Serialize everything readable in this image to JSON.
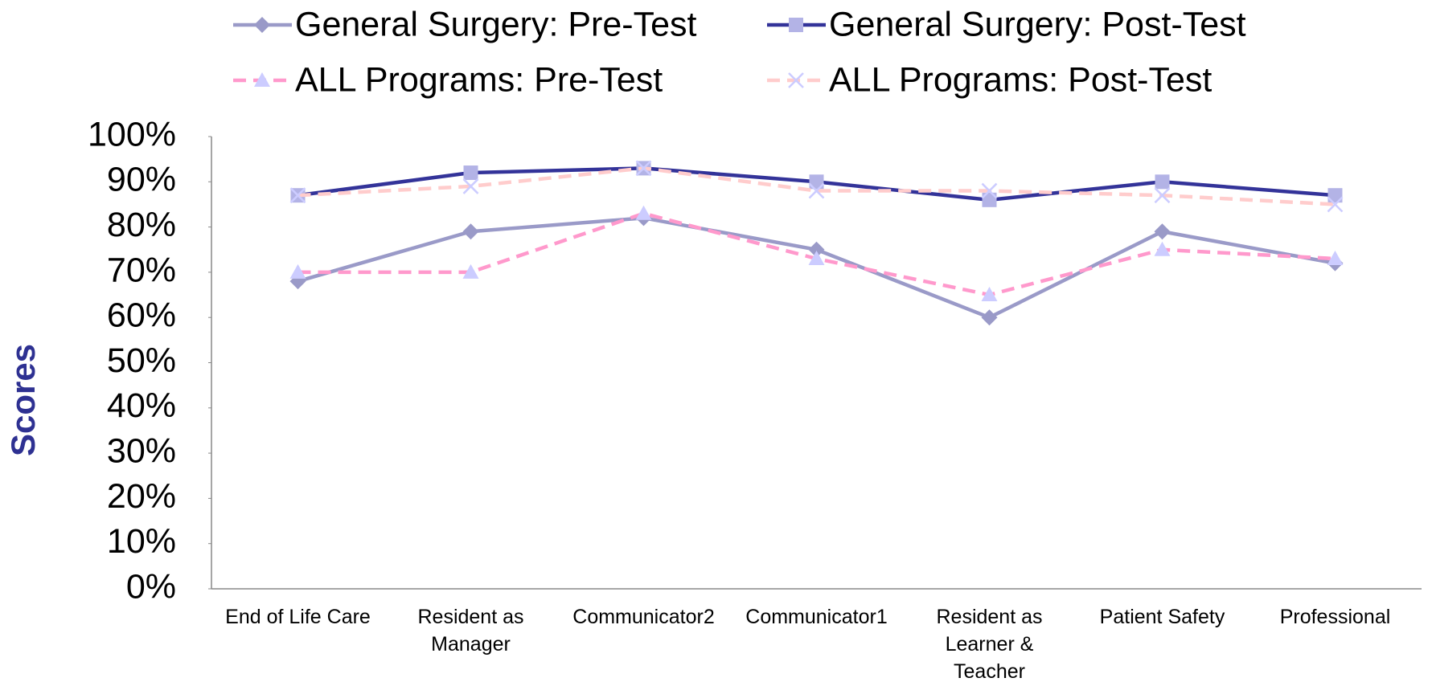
{
  "chart_data": {
    "type": "line",
    "y_label": "Scores",
    "categories": [
      "End of Life Care",
      "Resident as Manager",
      "Communicator2",
      "Communicator1",
      "Resident as Learner & Teacher",
      "Patient Safety",
      "Professional"
    ],
    "series": [
      {
        "name": "General Surgery: Pre-Test",
        "color": "#9a9ac8",
        "marker": "diamond",
        "marker_color": "#9a9ac8",
        "dashed": false,
        "values": [
          68,
          79,
          82,
          75,
          60,
          79,
          72
        ]
      },
      {
        "name": "General Surgery: Post-Test",
        "color": "#333399",
        "marker": "square",
        "marker_color": "#b3b3e6",
        "dashed": false,
        "values": [
          87,
          92,
          93,
          90,
          86,
          90,
          87
        ]
      },
      {
        "name": "ALL Programs: Pre-Test",
        "color": "#ff99cc",
        "marker": "triangle",
        "marker_color": "#ccccff",
        "dashed": true,
        "values": [
          70,
          70,
          83,
          73,
          65,
          75,
          73
        ]
      },
      {
        "name": "ALL Programs: Post-Test",
        "color": "#ffcccc",
        "marker": "x",
        "marker_color": "#ccccff",
        "dashed": true,
        "values": [
          87,
          89,
          93,
          88,
          88,
          87,
          85
        ]
      }
    ],
    "ylim": [
      0,
      100
    ],
    "yticks": [
      {
        "value": 0,
        "label": "0%"
      },
      {
        "value": 10,
        "label": "10%"
      },
      {
        "value": 20,
        "label": "20%"
      },
      {
        "value": 30,
        "label": "30%"
      },
      {
        "value": 40,
        "label": "40%"
      },
      {
        "value": 50,
        "label": "50%"
      },
      {
        "value": 60,
        "label": "60%"
      },
      {
        "value": 70,
        "label": "70%"
      },
      {
        "value": 80,
        "label": "80%"
      },
      {
        "value": 90,
        "label": "90%"
      },
      {
        "value": 100,
        "label": "100%"
      }
    ],
    "grid": false,
    "legend": "top"
  }
}
